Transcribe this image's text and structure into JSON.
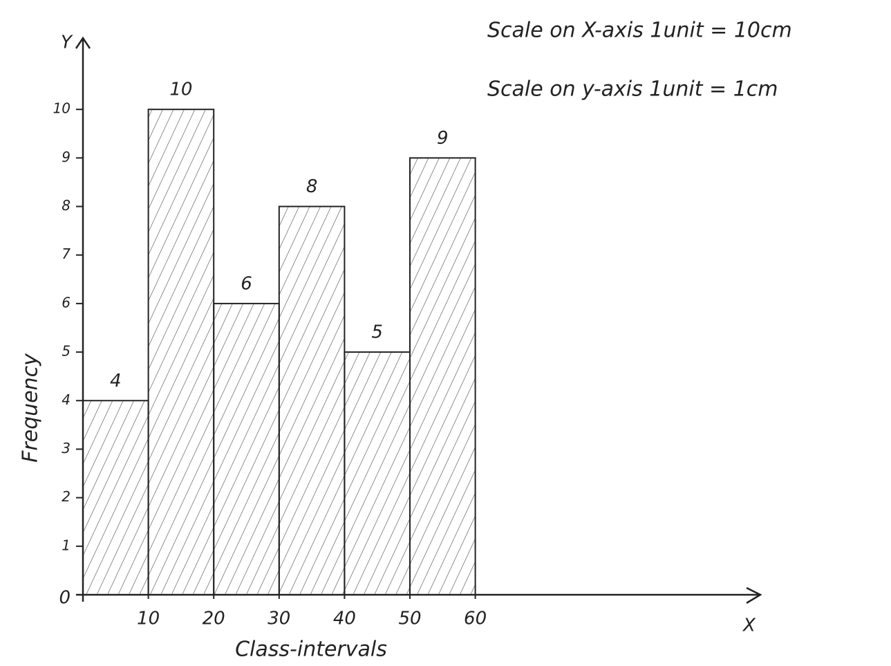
{
  "chart_data": {
    "type": "histogram",
    "bins": [
      0,
      10,
      20,
      30,
      40,
      50,
      60
    ],
    "values": [
      4,
      10,
      6,
      8,
      5,
      9
    ],
    "xlim": [
      0,
      100
    ],
    "ylim": [
      0,
      11
    ],
    "xticks": [
      10,
      20,
      30,
      40,
      50,
      60
    ],
    "yticks": [
      0,
      1,
      2,
      3,
      4,
      5,
      6,
      7,
      8,
      9,
      10
    ],
    "x_axis_name": "X",
    "y_axis_name": "Y",
    "xlabel": "Class-intervals",
    "ylabel": "Frequency",
    "annotations": [
      "Scale on X-axis 1unit = 10cm",
      "Scale on y-axis 1unit = 1cm"
    ],
    "color": "#222222",
    "hatch": true
  }
}
